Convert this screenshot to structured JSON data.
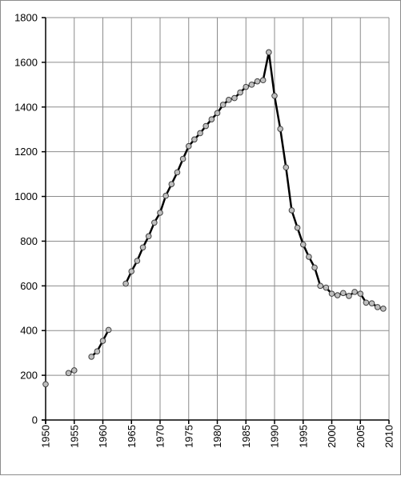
{
  "chart_data": {
    "type": "line",
    "title": "",
    "xlabel": "",
    "ylabel": "",
    "xlim": [
      1950,
      2010
    ],
    "ylim": [
      0,
      1800
    ],
    "x_ticks": [
      1950,
      1955,
      1960,
      1965,
      1970,
      1975,
      1980,
      1985,
      1990,
      1995,
      2000,
      2005,
      2010
    ],
    "y_ticks": [
      0,
      200,
      400,
      600,
      800,
      1000,
      1200,
      1400,
      1600,
      1800
    ],
    "grid": true,
    "legend": "none",
    "line_color": "#000000",
    "marker_fill": "#bfbfbf",
    "segments": [
      [
        [
          1950,
          160
        ]
      ],
      [
        [
          1954,
          210
        ],
        [
          1955,
          222
        ]
      ],
      [
        [
          1958,
          283
        ],
        [
          1959,
          307
        ],
        [
          1960,
          354
        ],
        [
          1961,
          403
        ]
      ],
      [
        [
          1964,
          610
        ],
        [
          1965,
          665
        ],
        [
          1966,
          712
        ],
        [
          1967,
          772
        ],
        [
          1968,
          822
        ],
        [
          1969,
          883
        ],
        [
          1970,
          927
        ],
        [
          1971,
          1003
        ],
        [
          1972,
          1055
        ],
        [
          1973,
          1108
        ],
        [
          1974,
          1168
        ],
        [
          1975,
          1225
        ],
        [
          1976,
          1255
        ],
        [
          1977,
          1283
        ],
        [
          1978,
          1315
        ],
        [
          1979,
          1345
        ],
        [
          1980,
          1373
        ],
        [
          1981,
          1410
        ],
        [
          1982,
          1432
        ],
        [
          1983,
          1440
        ],
        [
          1984,
          1465
        ],
        [
          1985,
          1490
        ],
        [
          1986,
          1500
        ],
        [
          1987,
          1515
        ],
        [
          1988,
          1520
        ],
        [
          1989,
          1645
        ],
        [
          1990,
          1450
        ],
        [
          1991,
          1302
        ],
        [
          1992,
          1130
        ],
        [
          1993,
          938
        ],
        [
          1994,
          860
        ],
        [
          1995,
          785
        ],
        [
          1996,
          730
        ],
        [
          1997,
          682
        ],
        [
          1998,
          600
        ],
        [
          1999,
          592
        ],
        [
          2000,
          565
        ],
        [
          2001,
          558
        ],
        [
          2002,
          568
        ],
        [
          2003,
          555
        ],
        [
          2004,
          573
        ],
        [
          2005,
          565
        ],
        [
          2006,
          525
        ],
        [
          2007,
          522
        ],
        [
          2008,
          505
        ],
        [
          2009,
          498
        ]
      ]
    ]
  }
}
